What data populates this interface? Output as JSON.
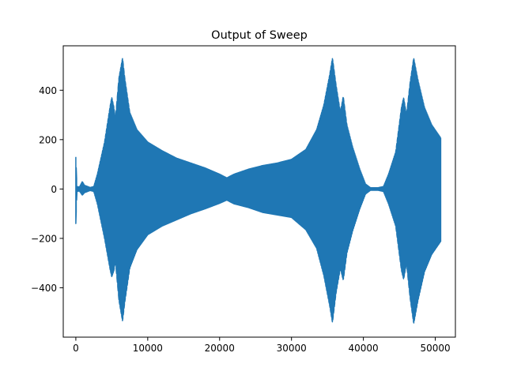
{
  "chart_data": {
    "type": "line",
    "title": "Output of Sweep",
    "xlabel": "",
    "ylabel": "",
    "xlim": [
      -1750,
      52800
    ],
    "ylim": [
      -600,
      580
    ],
    "grid": false,
    "legend": "none",
    "x_ticks": [
      0,
      10000,
      20000,
      30000,
      40000,
      50000
    ],
    "x_tick_labels": [
      "0",
      "10000",
      "20000",
      "30000",
      "40000",
      "50000"
    ],
    "y_ticks": [
      -400,
      -200,
      0,
      200,
      400
    ],
    "y_tick_labels": [
      "−400",
      "−200",
      "0",
      "200",
      "400"
    ],
    "series": [
      {
        "color": "#1f77b4",
        "envelope_upper": [
          [
            0,
            130
          ],
          [
            150,
            10
          ],
          [
            500,
            8
          ],
          [
            900,
            30
          ],
          [
            1200,
            15
          ],
          [
            2000,
            6
          ],
          [
            2500,
            10
          ],
          [
            3000,
            60
          ],
          [
            4000,
            190
          ],
          [
            4800,
            340
          ],
          [
            5000,
            370
          ],
          [
            5300,
            330
          ],
          [
            5500,
            280
          ],
          [
            6000,
            450
          ],
          [
            6500,
            530
          ],
          [
            6800,
            450
          ],
          [
            7500,
            310
          ],
          [
            8500,
            240
          ],
          [
            10000,
            190
          ],
          [
            12000,
            155
          ],
          [
            14000,
            125
          ],
          [
            16000,
            105
          ],
          [
            18000,
            85
          ],
          [
            20000,
            60
          ],
          [
            21000,
            45
          ],
          [
            22000,
            60
          ],
          [
            24000,
            80
          ],
          [
            26000,
            95
          ],
          [
            28000,
            105
          ],
          [
            30000,
            120
          ],
          [
            32000,
            160
          ],
          [
            33500,
            240
          ],
          [
            34500,
            340
          ],
          [
            35300,
            460
          ],
          [
            35700,
            530
          ],
          [
            36200,
            420
          ],
          [
            36800,
            310
          ],
          [
            37200,
            375
          ],
          [
            37700,
            260
          ],
          [
            38500,
            170
          ],
          [
            39500,
            80
          ],
          [
            40300,
            20
          ],
          [
            41000,
            5
          ],
          [
            42000,
            5
          ],
          [
            42800,
            10
          ],
          [
            43500,
            60
          ],
          [
            44500,
            150
          ],
          [
            45300,
            330
          ],
          [
            45600,
            370
          ],
          [
            46000,
            300
          ],
          [
            46500,
            430
          ],
          [
            47000,
            530
          ],
          [
            47600,
            440
          ],
          [
            48500,
            330
          ],
          [
            49500,
            260
          ],
          [
            50800,
            205
          ]
        ],
        "envelope_lower": [
          [
            0,
            -140
          ],
          [
            150,
            -10
          ],
          [
            500,
            -8
          ],
          [
            900,
            -25
          ],
          [
            1200,
            -15
          ],
          [
            2000,
            -6
          ],
          [
            2500,
            -10
          ],
          [
            3000,
            -60
          ],
          [
            4000,
            -200
          ],
          [
            4800,
            -330
          ],
          [
            5000,
            -355
          ],
          [
            5300,
            -330
          ],
          [
            5500,
            -290
          ],
          [
            6000,
            -450
          ],
          [
            6500,
            -535
          ],
          [
            6800,
            -460
          ],
          [
            7500,
            -320
          ],
          [
            8500,
            -245
          ],
          [
            10000,
            -185
          ],
          [
            12000,
            -150
          ],
          [
            14000,
            -125
          ],
          [
            16000,
            -100
          ],
          [
            18000,
            -80
          ],
          [
            20000,
            -58
          ],
          [
            21000,
            -45
          ],
          [
            22000,
            -60
          ],
          [
            24000,
            -75
          ],
          [
            26000,
            -95
          ],
          [
            28000,
            -105
          ],
          [
            30000,
            -115
          ],
          [
            32000,
            -165
          ],
          [
            33500,
            -240
          ],
          [
            34500,
            -350
          ],
          [
            35300,
            -470
          ],
          [
            35700,
            -540
          ],
          [
            36200,
            -420
          ],
          [
            36800,
            -320
          ],
          [
            37200,
            -370
          ],
          [
            37700,
            -260
          ],
          [
            38500,
            -170
          ],
          [
            39500,
            -80
          ],
          [
            40300,
            -20
          ],
          [
            41000,
            -5
          ],
          [
            42000,
            -5
          ],
          [
            42800,
            -10
          ],
          [
            43500,
            -60
          ],
          [
            44500,
            -150
          ],
          [
            45300,
            -330
          ],
          [
            45600,
            -365
          ],
          [
            46000,
            -300
          ],
          [
            46500,
            -440
          ],
          [
            47000,
            -545
          ],
          [
            47600,
            -450
          ],
          [
            48500,
            -335
          ],
          [
            49500,
            -265
          ],
          [
            50800,
            -210
          ]
        ]
      }
    ]
  }
}
